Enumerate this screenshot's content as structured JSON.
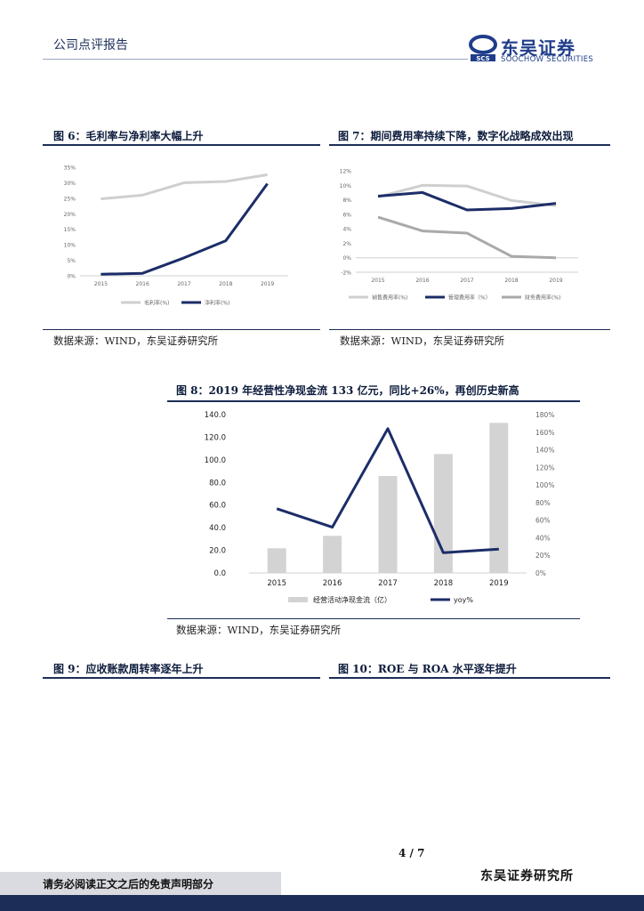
{
  "header": {
    "report_type": "公司点评报告",
    "logo_cn": "东吴证券",
    "logo_en": "SOOCHOW SECURITIES",
    "logo_mark_text": "SCS"
  },
  "figures": {
    "fig6": {
      "title": "图 6：毛利率与净利率大幅上升",
      "source": "数据来源：WIND，东吴证券研究所"
    },
    "fig7": {
      "title": "图 7：期间费用率持续下降，数字化战略成效出现",
      "source": "数据来源：WIND，东吴证券研究所"
    },
    "fig8": {
      "title": "图 8：2019 年经营性净现金流 133 亿元，同比+26%，再创历史新高",
      "source": "数据来源：WIND，东吴证券研究所"
    },
    "fig9": {
      "title": "图 9：应收账款周转率逐年上升"
    },
    "fig10": {
      "title": "图 10：ROE 与 ROA 水平逐年提升"
    }
  },
  "chart_data": [
    {
      "id": "fig6",
      "type": "line",
      "x": [
        "2015",
        "2016",
        "2017",
        "2018",
        "2019"
      ],
      "ylim": [
        0,
        35
      ],
      "yticks": [
        "0%",
        "5%",
        "10%",
        "15%",
        "20%",
        "25%",
        "30%",
        "35%"
      ],
      "series": [
        {
          "name": "毛利率(%)",
          "color": "#cfcfcf",
          "values": [
            24.8,
            26.0,
            30.0,
            30.4,
            32.6
          ]
        },
        {
          "name": "净利率(%)",
          "color": "#1c2d68",
          "values": [
            0.5,
            0.8,
            5.8,
            11.3,
            29.7
          ]
        }
      ],
      "legend": "bottom"
    },
    {
      "id": "fig7",
      "type": "line",
      "x": [
        "2015",
        "2016",
        "2017",
        "2018",
        "2019"
      ],
      "ylim": [
        -2,
        12
      ],
      "yticks": [
        "-2%",
        "0%",
        "2%",
        "4%",
        "6%",
        "8%",
        "10%",
        "12%"
      ],
      "series": [
        {
          "name": "销售费用率(%)",
          "color": "#cfcfcf",
          "values": [
            8.4,
            10.0,
            9.9,
            7.9,
            7.2
          ]
        },
        {
          "name": "管理费用率（%）",
          "color": "#1c2d68",
          "values": [
            8.5,
            9.0,
            6.6,
            6.8,
            7.5
          ]
        },
        {
          "name": "财务费用率(%)",
          "color": "#a9a9a9",
          "values": [
            5.6,
            3.7,
            3.4,
            0.2,
            0.0
          ]
        }
      ],
      "legend": "bottom"
    },
    {
      "id": "fig8",
      "type": "bar+line",
      "x": [
        "2015",
        "2016",
        "2017",
        "2018",
        "2019"
      ],
      "left_ylim": [
        0,
        140
      ],
      "left_yticks": [
        "0.0",
        "20.0",
        "40.0",
        "60.0",
        "80.0",
        "100.0",
        "120.0",
        "140.0"
      ],
      "right_ylim": [
        0,
        180
      ],
      "right_yticks": [
        "0%",
        "20%",
        "40%",
        "60%",
        "80%",
        "100%",
        "120%",
        "140%",
        "160%",
        "180%"
      ],
      "bars": {
        "name": "经营活动净现金流（亿）",
        "color": "#d3d3d3",
        "values": [
          21.8,
          32.8,
          85.7,
          105.1,
          132.7
        ]
      },
      "line": {
        "name": "yoy%",
        "color": "#1c2d68",
        "values": [
          73,
          52,
          164,
          23,
          27
        ]
      },
      "legend": "bottom"
    }
  ],
  "footer": {
    "page": "4 / 7",
    "disclaimer": "请务必阅读正文之后的免责声明部分",
    "org": "东吴证券研究所"
  }
}
